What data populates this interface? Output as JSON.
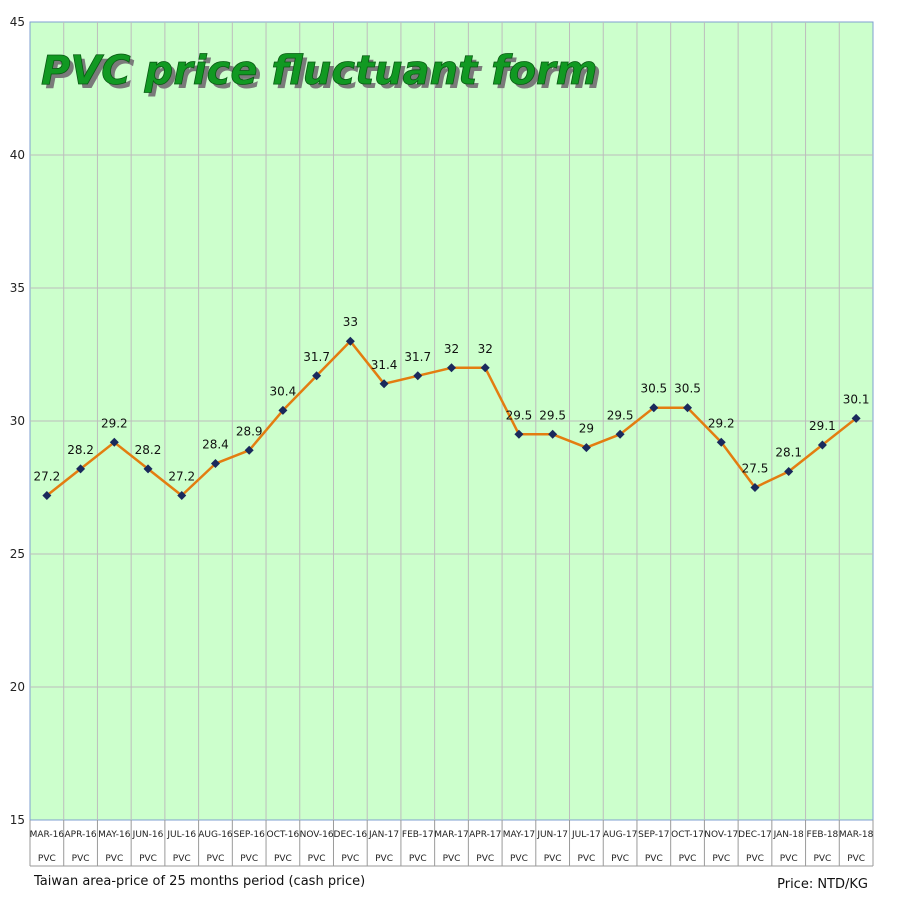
{
  "chart_data": {
    "type": "line",
    "title": "PVC price fluctuant form",
    "categories": [
      "MAR-16",
      "APR-16",
      "MAY-16",
      "JUN-16",
      "JUL-16",
      "AUG-16",
      "SEP-16",
      "OCT-16",
      "NOV-16",
      "DEC-16",
      "JAN-17",
      "FEB-17",
      "MAR-17",
      "APR-17",
      "MAY-17",
      "JUN-17",
      "JUL-17",
      "AUG-17",
      "SEP-17",
      "OCT-17",
      "NOV-17",
      "DEC-17",
      "JAN-18",
      "FEB-18",
      "MAR-18"
    ],
    "category_sublabel": "PVC",
    "series": [
      {
        "values": [
          27.2,
          28.2,
          29.2,
          28.2,
          27.2,
          28.4,
          28.9,
          30.4,
          31.7,
          33,
          31.4,
          31.7,
          32,
          32,
          29.5,
          29.5,
          29,
          29.5,
          30.5,
          30.5,
          29.2,
          27.5,
          28.1,
          29.1,
          30.1
        ]
      }
    ],
    "ylim": [
      15,
      45
    ],
    "yticks": [
      15,
      20,
      25,
      30,
      35,
      40,
      45
    ],
    "grid": true,
    "legend": "none",
    "footnote_left": "Taiwan area-price of 25 months period (cash price)",
    "footnote_right": "Price: NTD/KG",
    "colors": {
      "plot_background": "#ccffcc",
      "line": "#e37d10",
      "marker": "#1a2a5c",
      "title_fill": "#119922",
      "title_shadow": "#7a7a7a",
      "grid": "#bdbdbd"
    }
  }
}
